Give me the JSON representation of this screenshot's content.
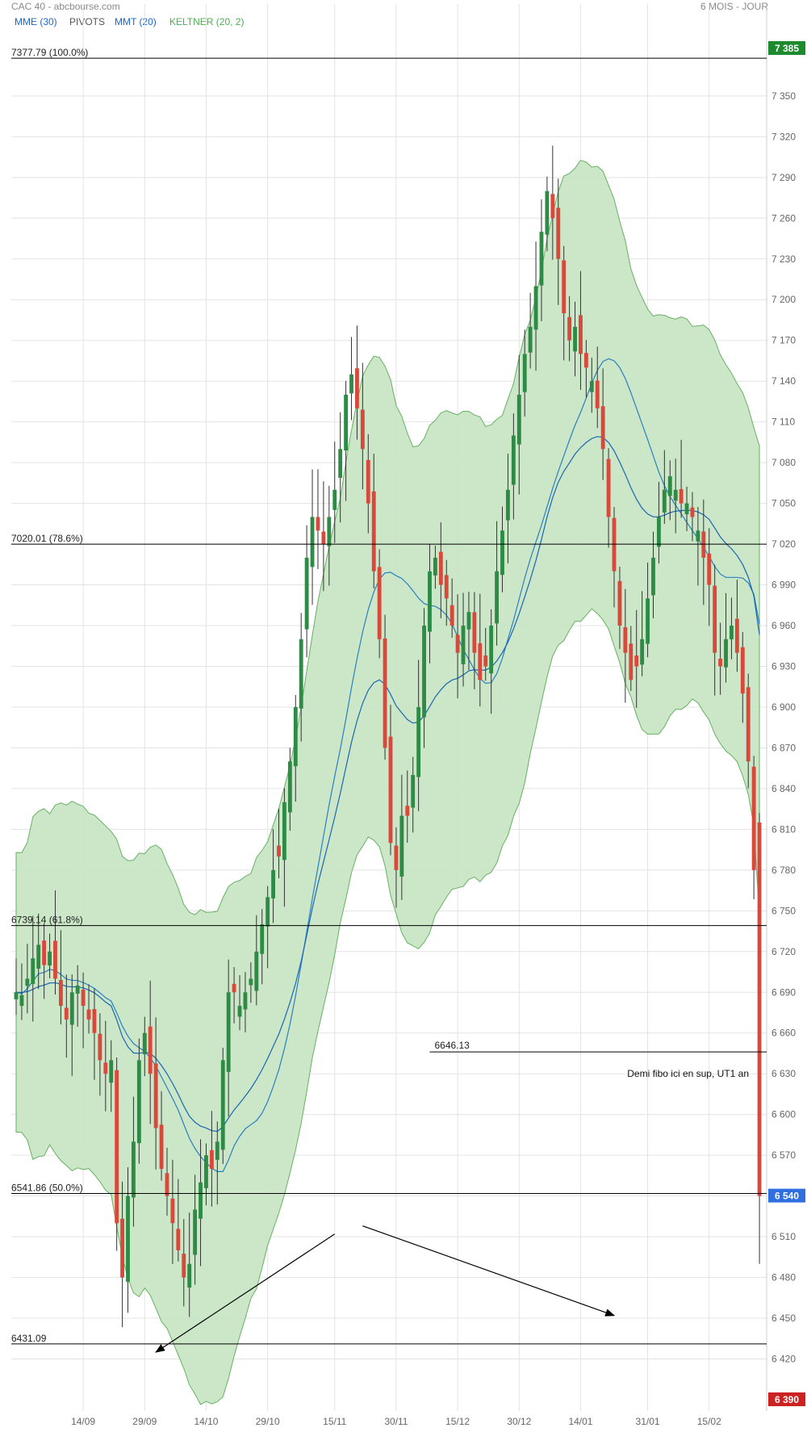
{
  "header": {
    "title": "CAC 40 - abcbourse.com",
    "period": "6 MOIS - JOUR"
  },
  "indicators": [
    {
      "label": "MME (30)",
      "color": "#1f66c7"
    },
    {
      "label": "PIVOTS",
      "color": "#555555"
    },
    {
      "label": "MMT (20)",
      "color": "#1f66c7"
    },
    {
      "label": "KELTNER (20, 2)",
      "color": "#4caf50"
    }
  ],
  "colors": {
    "up": "#2e8b45",
    "down": "#d9493b",
    "keltner_fill": "#c9e6c6",
    "keltner_line": "#5fad5a",
    "mme": "#1a66b3",
    "mmt": "#2a7fc0",
    "grid": "#e3e3e3"
  },
  "chart_data": {
    "type": "candlestick",
    "ylim": [
      6390,
      7385
    ],
    "y_ticks": [
      6420,
      6450,
      6480,
      6510,
      6540,
      6570,
      6600,
      6630,
      6660,
      6690,
      6720,
      6750,
      6780,
      6810,
      6840,
      6870,
      6900,
      6930,
      6960,
      6990,
      7020,
      7050,
      7080,
      7110,
      7140,
      7170,
      7200,
      7230,
      7260,
      7290,
      7320,
      7350
    ],
    "y_tick_labels": [
      "6 420",
      "6 450",
      "6 480",
      "6 510",
      "6 540",
      "6 570",
      "6 600",
      "6 630",
      "6 660",
      "6 690",
      "6 720",
      "6 750",
      "6 780",
      "6 810",
      "6 840",
      "6 870",
      "6 900",
      "6 930",
      "6 960",
      "6 990",
      "7 020",
      "7 050",
      "7 080",
      "7 110",
      "7 140",
      "7 170",
      "7 200",
      "7 230",
      "7 260",
      "7 290",
      "7 320",
      "7 350"
    ],
    "x_labels": [
      {
        "label": "14/09",
        "index": 12
      },
      {
        "label": "29/09",
        "index": 23
      },
      {
        "label": "14/10",
        "index": 34
      },
      {
        "label": "29/10",
        "index": 45
      },
      {
        "label": "15/11",
        "index": 57
      },
      {
        "label": "30/11",
        "index": 68
      },
      {
        "label": "15/12",
        "index": 79
      },
      {
        "label": "30/12",
        "index": 90
      },
      {
        "label": "14/01",
        "index": 101
      },
      {
        "label": "31/01",
        "index": 113
      },
      {
        "label": "15/02",
        "index": 124
      }
    ],
    "top_badge": {
      "value": "7 385",
      "color": "#1e8a2e"
    },
    "current_badge": {
      "value": "6 540",
      "price": 6540,
      "color": "#2f6fe0"
    },
    "bottom_badge": {
      "value": "6 390",
      "color": "#cc2222"
    },
    "levels": [
      {
        "label": "7377.79  (100.0%)",
        "price": 7377.79
      },
      {
        "label": "7020.01  (78.6%)",
        "price": 7020.01
      },
      {
        "label": "6739.14  (61.8%)",
        "price": 6739.14
      },
      {
        "label": "6541.86  (50.0%)",
        "price": 6541.86
      },
      {
        "label": "6431.09",
        "price": 6431.09
      }
    ],
    "support_level": {
      "label": "6646.13",
      "price": 6646.13,
      "start_index": 74
    },
    "annotation": {
      "text": "Demi fibo ici en sup, UT1 an"
    },
    "arrows": [
      {
        "from": [
          57,
          6512
        ],
        "to": [
          25,
          6425
        ]
      },
      {
        "from": [
          62,
          6518
        ],
        "to": [
          107,
          6452
        ]
      }
    ],
    "closes": [
      6690,
      6688,
      6700,
      6715,
      6725,
      6710,
      6720,
      6700,
      6680,
      6670,
      6690,
      6695,
      6680,
      6670,
      6660,
      6640,
      6630,
      6640,
      6520,
      6480,
      6540,
      6580,
      6640,
      6660,
      6630,
      6590,
      6560,
      6540,
      6520,
      6500,
      6480,
      6490,
      6530,
      6550,
      6570,
      6560,
      6580,
      6640,
      6690,
      6690,
      6680,
      6690,
      6700,
      6720,
      6740,
      6760,
      6780,
      6790,
      6830,
      6860,
      6900,
      6950,
      7010,
      7040,
      7030,
      7020,
      7040,
      7060,
      7090,
      7130,
      7145,
      7120,
      7090,
      7050,
      7000,
      6950,
      6870,
      6800,
      6780,
      6820,
      6820,
      6850,
      6900,
      6960,
      7000,
      7010,
      6990,
      6980,
      6960,
      6940,
      6960,
      6970,
      6940,
      6920,
      6930,
      6960,
      7000,
      7030,
      7060,
      7100,
      7130,
      7160,
      7180,
      7210,
      7250,
      7280,
      7260,
      7230,
      7190,
      7170,
      7180,
      7160,
      7150,
      7140,
      7120,
      7090,
      7040,
      7000,
      6960,
      6940,
      6920,
      6930,
      6950,
      6980,
      7010,
      7040,
      7060,
      7070,
      7060,
      7050,
      7050,
      7040,
      7030,
      7010,
      6990,
      6940,
      6930,
      6950,
      6960,
      6940,
      6910,
      6860,
      6780,
      6540
    ],
    "ohlc_sample_note": ""
  }
}
